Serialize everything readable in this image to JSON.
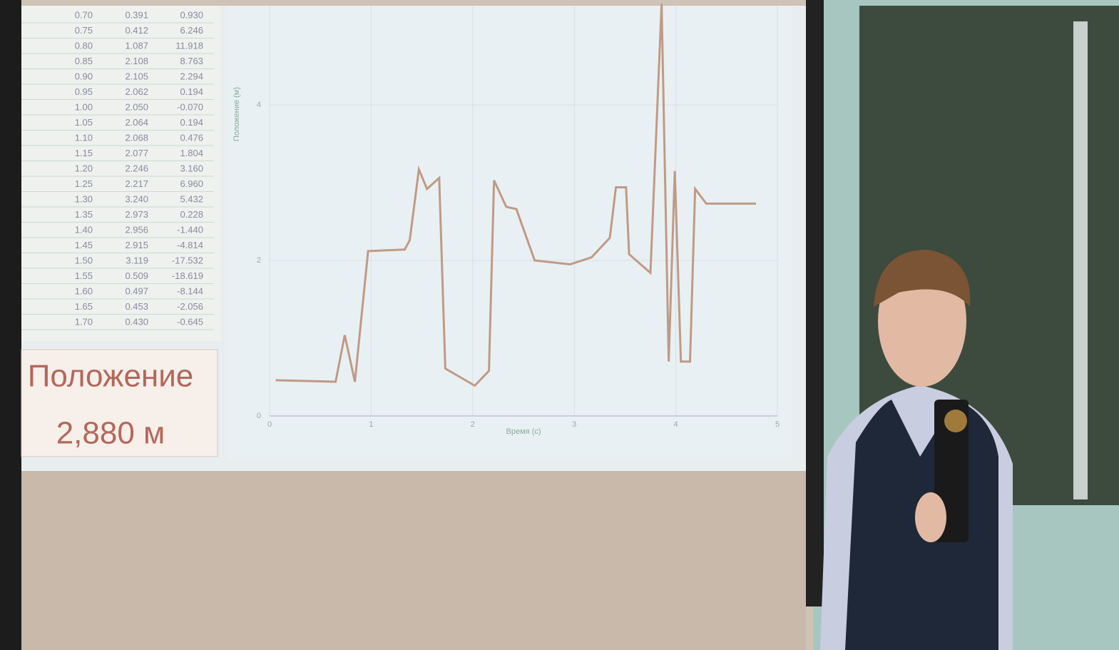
{
  "table": {
    "rows": [
      [
        "0.70",
        "0.391",
        "0.930"
      ],
      [
        "0.75",
        "0.412",
        "6.246"
      ],
      [
        "0.80",
        "1.087",
        "11.918"
      ],
      [
        "0.85",
        "2.108",
        "8.763"
      ],
      [
        "0.90",
        "2.105",
        "2.294"
      ],
      [
        "0.95",
        "2.062",
        "0.194"
      ],
      [
        "1.00",
        "2.050",
        "-0.070"
      ],
      [
        "1.05",
        "2.064",
        "0.194"
      ],
      [
        "1.10",
        "2.068",
        "0.476"
      ],
      [
        "1.15",
        "2.077",
        "1.804"
      ],
      [
        "1.20",
        "2.246",
        "3.160"
      ],
      [
        "1.25",
        "2.217",
        "6.960"
      ],
      [
        "1.30",
        "3.240",
        "5.432"
      ],
      [
        "1.35",
        "2.973",
        "0.228"
      ],
      [
        "1.40",
        "2.956",
        "-1.440"
      ],
      [
        "1.45",
        "2.915",
        "-4.814"
      ],
      [
        "1.50",
        "3.119",
        "-17.532"
      ],
      [
        "1.55",
        "0.509",
        "-18.619"
      ],
      [
        "1.60",
        "0.497",
        "-8.144"
      ],
      [
        "1.65",
        "0.453",
        "-2.056"
      ],
      [
        "1.70",
        "0.430",
        "-0.645"
      ]
    ]
  },
  "readout": {
    "label": "Положение",
    "value": "2,880 м"
  },
  "chart_data": {
    "type": "line",
    "x_label": "Время (с)",
    "y_label": "Положение (м)",
    "x": [
      0.06,
      0.65,
      0.74,
      0.84,
      0.97,
      1.33,
      1.38,
      1.47,
      1.55,
      1.67,
      1.73,
      2.02,
      2.16,
      2.21,
      2.33,
      2.43,
      2.61,
      2.96,
      3.17,
      3.35,
      3.41,
      3.51,
      3.54,
      3.75,
      3.86,
      3.93,
      3.99,
      4.05,
      4.14,
      4.19,
      4.3,
      4.79
    ],
    "values": [
      0.46,
      0.44,
      1.04,
      0.44,
      2.12,
      2.14,
      2.26,
      3.17,
      2.92,
      3.06,
      0.61,
      0.39,
      0.58,
      3.03,
      2.69,
      2.66,
      2.0,
      1.95,
      2.04,
      2.29,
      2.94,
      2.94,
      2.08,
      1.84,
      5.3,
      0.7,
      3.15,
      0.7,
      0.7,
      2.92,
      2.73,
      2.73
    ],
    "color": "#c09a86",
    "xlim": [
      0,
      5
    ],
    "ylim": [
      0,
      5.4
    ],
    "xticks": [
      0,
      1,
      2,
      3,
      4,
      5
    ],
    "yticks": [
      0,
      2,
      4
    ],
    "grid": true
  }
}
